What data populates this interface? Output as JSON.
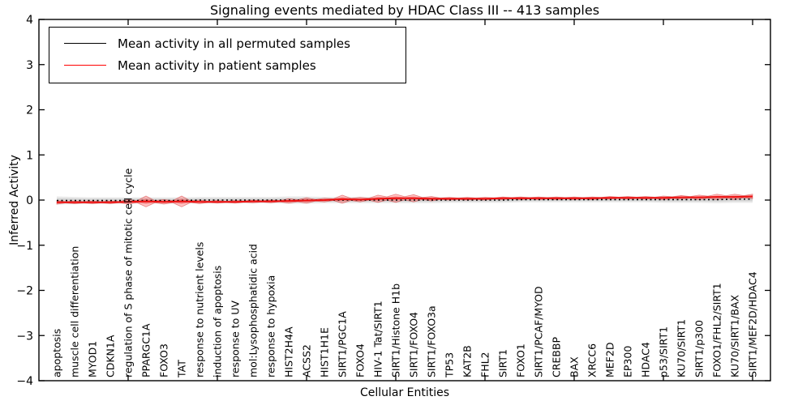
{
  "title": "Signaling events mediated by HDAC Class III -- 413 samples",
  "legend": {
    "items": [
      {
        "label": "Mean activity in all permuted samples",
        "color": "#000000"
      },
      {
        "label": "Mean activity in patient samples",
        "color": "#ff0000"
      }
    ]
  },
  "axes": {
    "ylabel": "Inferred Activity",
    "xlabel": "Cellular Entities"
  },
  "chart_data": {
    "type": "line",
    "title": "Signaling events mediated by HDAC Class III -- 413 samples",
    "xlabel": "Cellular Entities",
    "ylabel": "Inferred Activity",
    "ylim": [
      -4,
      4
    ],
    "ytick_values": [
      4,
      3,
      2,
      1,
      0,
      -1,
      -2,
      -3,
      -4
    ],
    "ytick_labels": [
      "4",
      "3",
      "2",
      "1",
      "0",
      "−1",
      "−2",
      "−3",
      "−4"
    ],
    "major_tick_every": 5,
    "grid": false,
    "legend_position": "upper left",
    "categories": [
      "apoptosis",
      "muscle cell differentiation",
      "MYOD1",
      "CDKN1A",
      "regulation of S phase of mitotic cell cycle",
      "PPARGC1A",
      "FOXO3",
      "TAT",
      "response to nutrient levels",
      "induction of apoptosis",
      "response to UV",
      "mol:Lysophosphatidic acid",
      "response to hypoxia",
      "HIST2H4A",
      "ACSS2",
      "HIST1H1E",
      "SIRT1/PGC1A",
      "FOXO4",
      "HIV-1 Tat/SIRT1",
      "SIRT1/Histone H1b",
      "SIRT1/FOXO4",
      "SIRT1/FOXO3a",
      "TP53",
      "KAT2B",
      "FHL2",
      "SIRT1",
      "FOXO1",
      "SIRT1/PCAF/MYOD",
      "CREBBP",
      "BAX",
      "XRCC6",
      "MEF2D",
      "EP300",
      "HDAC4",
      "p53/SIRT1",
      "KU70/SIRT1",
      "SIRT1/p300",
      "FOXO1/FHL2/SIRT1",
      "KU70/SIRT1/BAX",
      "SIRT1/MEF2D/HDAC4"
    ],
    "series": [
      {
        "name": "Mean activity in all permuted samples",
        "color": "#000000",
        "style": "dotted",
        "values": [
          -0.01,
          -0.01,
          -0.01,
          -0.01,
          -0.01,
          -0.01,
          -0.01,
          -0.01,
          0,
          0,
          0,
          0,
          0,
          0,
          0,
          0,
          0,
          0,
          0,
          0,
          0,
          0,
          0,
          0,
          0,
          0,
          0.01,
          0.01,
          0.01,
          0.01,
          0.01,
          0.01,
          0.01,
          0.01,
          0.01,
          0.01,
          0.01,
          0.01,
          0.02,
          0.02
        ]
      },
      {
        "name": "Mean activity in patient samples",
        "color": "#ff0000",
        "style": "solid",
        "values": [
          -0.05,
          -0.05,
          -0.05,
          -0.05,
          -0.04,
          -0.03,
          -0.04,
          -0.03,
          -0.04,
          -0.04,
          -0.04,
          -0.03,
          -0.03,
          -0.02,
          -0.01,
          0.0,
          0.02,
          0.01,
          0.03,
          0.04,
          0.04,
          0.03,
          0.03,
          0.03,
          0.03,
          0.04,
          0.04,
          0.04,
          0.04,
          0.04,
          0.04,
          0.05,
          0.05,
          0.05,
          0.05,
          0.06,
          0.06,
          0.07,
          0.07,
          0.08
        ]
      }
    ],
    "bands": [
      {
        "name": "permuted samples range",
        "color": "#9a9a9a",
        "center_series": 0,
        "halfwidths": [
          0.09,
          0.08,
          0.07,
          0.07,
          0.07,
          0.07,
          0.07,
          0.07,
          0.07,
          0.07,
          0.07,
          0.07,
          0.07,
          0.08,
          0.08,
          0.07,
          0.07,
          0.07,
          0.07,
          0.07,
          0.07,
          0.07,
          0.06,
          0.06,
          0.06,
          0.06,
          0.06,
          0.06,
          0.06,
          0.06,
          0.06,
          0.06,
          0.06,
          0.06,
          0.07,
          0.07,
          0.07,
          0.08,
          0.08,
          0.08
        ]
      },
      {
        "name": "patient samples distribution",
        "color": "#ff2a2a",
        "center_series": 1,
        "halfwidths": [
          0.04,
          0.03,
          0.03,
          0.03,
          0.05,
          0.12,
          0.05,
          0.12,
          0.04,
          0.03,
          0.03,
          0.03,
          0.03,
          0.05,
          0.06,
          0.04,
          0.09,
          0.05,
          0.08,
          0.09,
          0.08,
          0.05,
          0.03,
          0.03,
          0.03,
          0.03,
          0.03,
          0.03,
          0.03,
          0.03,
          0.03,
          0.03,
          0.03,
          0.03,
          0.04,
          0.04,
          0.05,
          0.06,
          0.06,
          0.05
        ]
      }
    ]
  }
}
